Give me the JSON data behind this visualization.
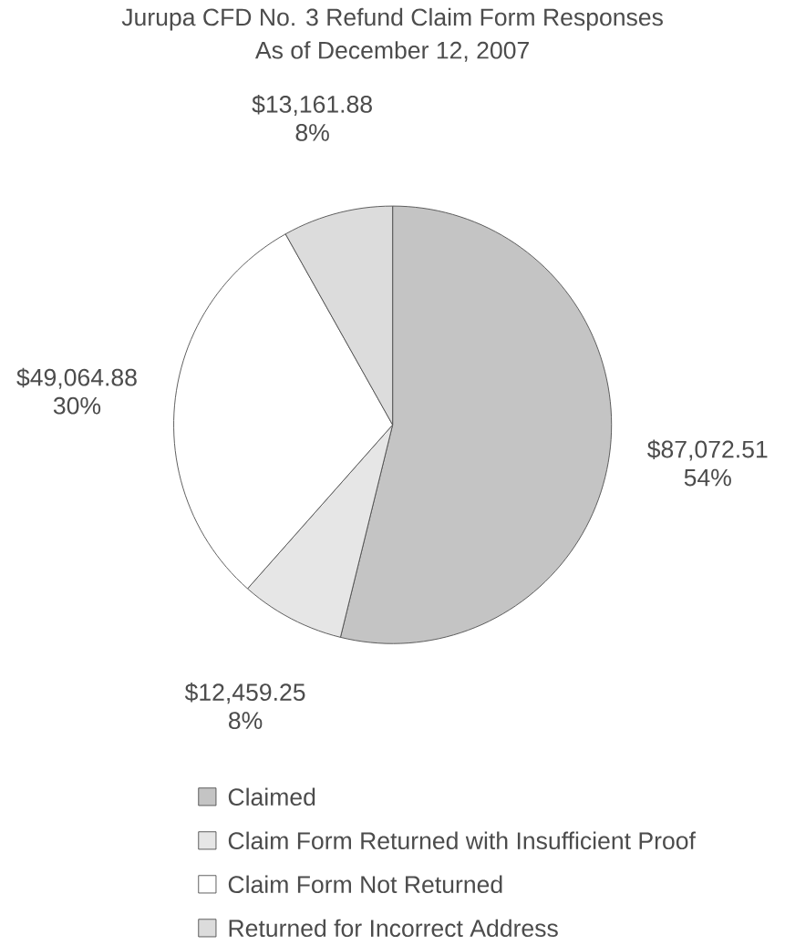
{
  "chart_data": {
    "type": "pie",
    "title": "Jurupa CFD No. 3 Refund Claim Form Responses",
    "subtitle": "As of December 12, 2007",
    "categories": [
      "Claimed",
      "Claim Form Returned with Insufficient Proof",
      "Claim Form Not Returned",
      "Returned for Incorrect Address"
    ],
    "values": [
      87072.51,
      12459.25,
      49064.88,
      13161.88
    ],
    "value_labels": [
      "$87,072.51 54%",
      "$12,459.25 8%",
      "$49,064.88 30%",
      "$13,161.88 8%"
    ],
    "colors": [
      "#c4c4c4",
      "#e6e6e6",
      "#ffffff",
      "#dcdcdc"
    ],
    "legend": "bottom"
  }
}
